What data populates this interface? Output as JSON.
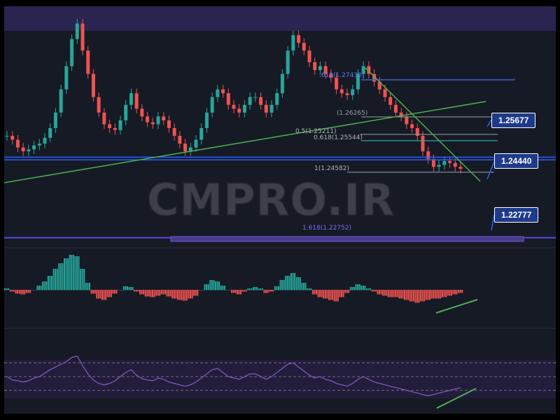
{
  "watermark": "CMPRO.IR",
  "price_labels": [
    {
      "text": "1.25677"
    },
    {
      "text": "1.24440"
    },
    {
      "text": "1.22777"
    }
  ],
  "fib_levels": [
    {
      "text": ".618(1.27430)",
      "color": "#5b7cfa"
    },
    {
      "text": "(1.26265)",
      "color": "#9aa0a6"
    },
    {
      "text": "0.618(1.25544)",
      "color": "#b0b3b8"
    },
    {
      "text": "0.5(1.25211)",
      "color": "#b0b3b8"
    },
    {
      "text": "1(1.24582)",
      "color": "#b0b3b8"
    },
    {
      "text": "1.618(1.22752)",
      "color": "#7c6cf0"
    }
  ],
  "colors": {
    "background": "#161a25",
    "bull": "#26a69a",
    "bear": "#ef5350",
    "trendline": "#4caf50",
    "level_blue": "#2962ff",
    "zone_purple": "#4b3a8c",
    "rsi_line": "#7e57c2",
    "label_bg": "#1e3a8a"
  },
  "chart_data": {
    "type": "line",
    "title": "",
    "panels": [
      {
        "name": "price",
        "ylim": [
          1.226,
          1.286
        ],
        "series": [
          {
            "values": [
              1.254,
              1.253,
              1.251,
              1.25,
              1.2505,
              1.2515,
              1.252,
              1.2535,
              1.256,
              1.26,
              1.266,
              1.272,
              1.279,
              1.283,
              1.276,
              1.27,
              1.264,
              1.26,
              1.257,
              1.256,
              1.2555,
              1.258,
              1.262,
              1.265,
              1.261,
              1.259,
              1.2575,
              1.257,
              1.259,
              1.258,
              1.256,
              1.254,
              1.252,
              1.25,
              1.251,
              1.253,
              1.256,
              1.26,
              1.264,
              1.266,
              1.265,
              1.262,
              1.261,
              1.26,
              1.262,
              1.264,
              1.264,
              1.262,
              1.26,
              1.262,
              1.265,
              1.27,
              1.276,
              1.28,
              1.278,
              1.276,
              1.273,
              1.271,
              1.272,
              1.27,
              1.269,
              1.266,
              1.265,
              1.2645,
              1.266,
              1.27,
              1.272,
              1.27,
              1.268,
              1.266,
              1.264,
              1.262,
              1.26,
              1.259,
              1.257,
              1.256,
              1.254,
              1.25,
              1.248,
              1.246,
              1.2465,
              1.2475,
              1.247,
              1.246,
              1.2455
            ]
          }
        ],
        "horizontal_levels": [
          1.2485,
          1.2478,
          1.2277
        ],
        "price_labels": [
          1.25677,
          1.2444,
          1.22777
        ]
      },
      {
        "name": "macd_histogram",
        "ylim": [
          -30,
          60
        ],
        "series": [
          {
            "values": [
              2,
              -2,
              -5,
              -6,
              -4,
              0,
              6,
              12,
              20,
              30,
              38,
              45,
              50,
              48,
              30,
              10,
              -5,
              -12,
              -14,
              -10,
              -5,
              0,
              5,
              4,
              -2,
              -6,
              -9,
              -10,
              -8,
              -6,
              -9,
              -12,
              -14,
              -15,
              -12,
              -8,
              0,
              8,
              14,
              12,
              6,
              0,
              -4,
              -6,
              -2,
              2,
              4,
              2,
              -4,
              -2,
              5,
              14,
              20,
              24,
              18,
              10,
              2,
              -6,
              -10,
              -12,
              -14,
              -16,
              -10,
              -4,
              4,
              8,
              6,
              2,
              -2,
              -6,
              -8,
              -10,
              -10,
              -12,
              -14,
              -16,
              -18,
              -16,
              -14,
              -12,
              -12,
              -10,
              -8,
              -6,
              -4
            ]
          }
        ]
      },
      {
        "name": "rsi",
        "ylim": [
          0,
          100
        ],
        "reference_levels": [
          70,
          50,
          30
        ],
        "series": [
          {
            "values": [
              50,
              45,
              44,
              42,
              44,
              48,
              50,
              55,
              60,
              64,
              68,
              72,
              78,
              80,
              66,
              54,
              45,
              40,
              38,
              40,
              44,
              50,
              56,
              60,
              52,
              47,
              45,
              44,
              48,
              46,
              42,
              40,
              38,
              36,
              38,
              42,
              48,
              54,
              60,
              62,
              56,
              50,
              48,
              46,
              50,
              54,
              54,
              50,
              46,
              50,
              56,
              62,
              68,
              70,
              64,
              58,
              52,
              48,
              50,
              46,
              44,
              40,
              38,
              36,
              40,
              46,
              50,
              46,
              42,
              40,
              38,
              36,
              34,
              32,
              30,
              28,
              26,
              24,
              22,
              24,
              26,
              28,
              30,
              32,
              34
            ]
          }
        ]
      }
    ]
  }
}
